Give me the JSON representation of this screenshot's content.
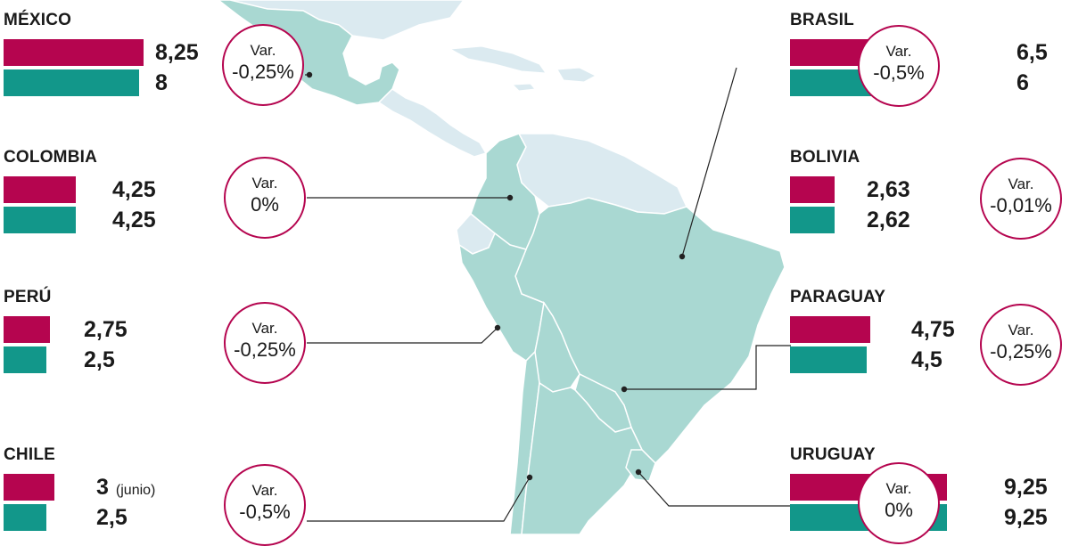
{
  "chart_data": {
    "type": "bar",
    "units": "%",
    "colors": {
      "previous": "#b5054f",
      "current": "#12978a",
      "land": "#a9d8d2",
      "land_other": "#dbeaf0",
      "border": "#ffffff",
      "leader": "#222222"
    },
    "circle_label": "Var.",
    "countries": [
      {
        "name": "MÉXICO",
        "previous": "8,25",
        "current": "8",
        "variation": "-0,25%",
        "note": ""
      },
      {
        "name": "COLOMBIA",
        "previous": "4,25",
        "current": "4,25",
        "variation": "0%",
        "note": ""
      },
      {
        "name": "PERÚ",
        "previous": "2,75",
        "current": "2,5",
        "variation": "-0,25%",
        "note": ""
      },
      {
        "name": "CHILE",
        "previous": "3",
        "current": "2,5",
        "variation": "-0,5%",
        "note": "(junio)"
      },
      {
        "name": "BRASIL",
        "previous": "6,5",
        "current": "6",
        "variation": "-0,5%",
        "note": ""
      },
      {
        "name": "BOLIVIA",
        "previous": "2,63",
        "current": "2,62",
        "variation": "-0,01%",
        "note": ""
      },
      {
        "name": "PARAGUAY",
        "previous": "4,75",
        "current": "4,5",
        "variation": "-0,25%",
        "note": ""
      },
      {
        "name": "URUGUAY",
        "previous": "9,25",
        "current": "9,25",
        "variation": "0%",
        "note": ""
      }
    ]
  }
}
